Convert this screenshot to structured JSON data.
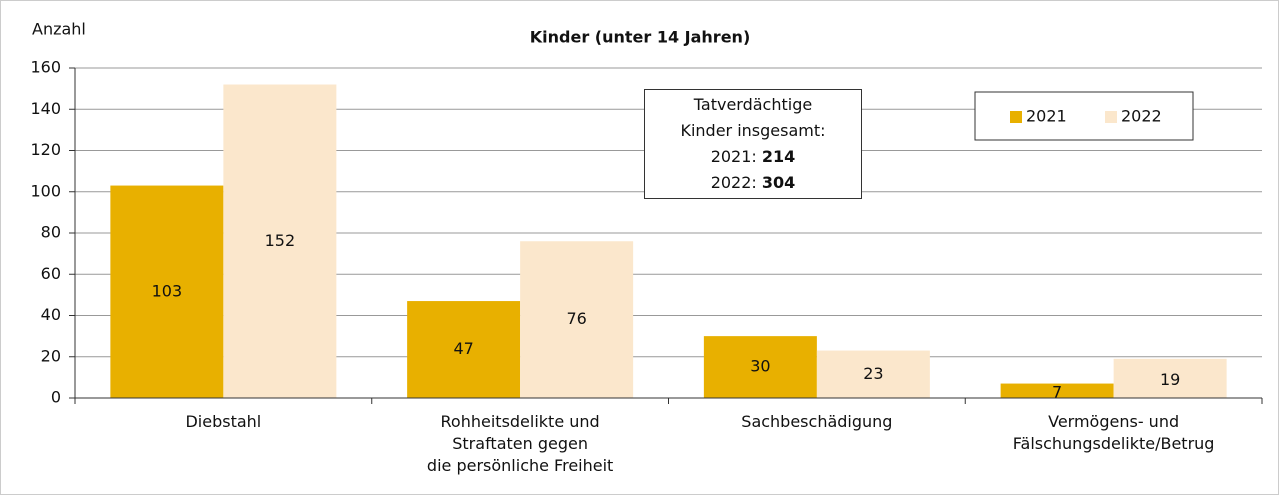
{
  "chart_data": {
    "type": "bar",
    "title": "Kinder (unter 14 Jahren)",
    "y_label": "Anzahl",
    "categories": [
      "Diebstahl",
      "Rohheitsdelikte und\nStraftaten gegen\ndie persönliche Freiheit",
      "Sachbeschädigung",
      "Vermögens- und\nFälschungsdelikte/Betrug"
    ],
    "series": [
      {
        "name": "2021",
        "color": "#e8b000",
        "values": [
          103,
          47,
          30,
          7
        ]
      },
      {
        "name": "2022",
        "color": "#fbe7cc",
        "values": [
          152,
          76,
          23,
          19
        ]
      }
    ],
    "ylim": [
      0,
      160
    ],
    "yticks": [
      0,
      20,
      40,
      60,
      80,
      100,
      120,
      140,
      160
    ],
    "grid": true,
    "legend": "upper right",
    "annotation": {
      "text": "Tatverdächtige\nKinder insgesamt:",
      "totals": [
        {
          "label": "2021:",
          "value": 214
        },
        {
          "label": "2022:",
          "value": 304
        }
      ]
    }
  }
}
